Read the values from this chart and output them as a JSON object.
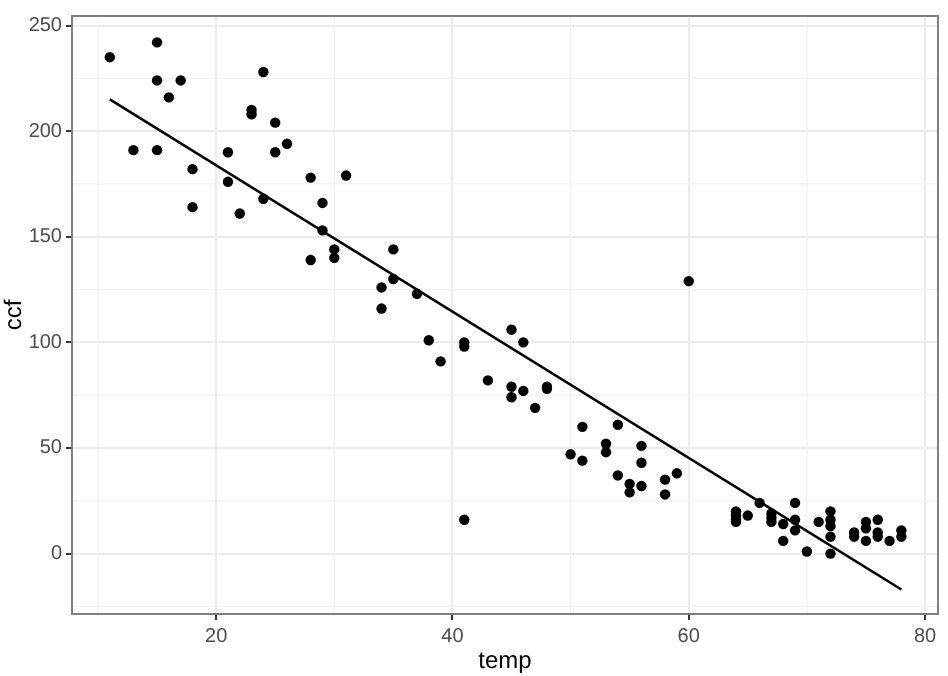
{
  "chart_data": {
    "type": "scatter",
    "xlabel": "temp",
    "ylabel": "ccf",
    "xlim": [
      7.8,
      81.1
    ],
    "ylim": [
      -28.6,
      254.5
    ],
    "xticks": [
      20,
      40,
      60,
      80
    ],
    "yticks": [
      0,
      50,
      100,
      150,
      200,
      250
    ],
    "grid": true,
    "legend": false,
    "series": [
      {
        "color": "#000000",
        "marker": "circle",
        "x": [
          11,
          13,
          15,
          15,
          15,
          16,
          17,
          18,
          18,
          21,
          21,
          22,
          23,
          23,
          24,
          24,
          25,
          25,
          26,
          28,
          28,
          29,
          29,
          30,
          30,
          31,
          34,
          34,
          35,
          35,
          37,
          38,
          39,
          41,
          41,
          41,
          45,
          46,
          43,
          45,
          45,
          46,
          47,
          48,
          48,
          50,
          51,
          51,
          53,
          53,
          54,
          54,
          55,
          55,
          56,
          56,
          56,
          58,
          58,
          59,
          60,
          64,
          64,
          64,
          64,
          65,
          66,
          67,
          67,
          67,
          68,
          68,
          69,
          69,
          69,
          70,
          71,
          72,
          72,
          72,
          72,
          72,
          74,
          74,
          75,
          75,
          75,
          76,
          76,
          76,
          77,
          78,
          78
        ],
        "values": [
          235,
          191,
          242,
          224,
          191,
          216,
          224,
          182,
          164,
          190,
          176,
          161,
          210,
          208,
          228,
          168,
          204,
          190,
          194,
          178,
          139,
          166,
          153,
          144,
          140,
          179,
          126,
          116,
          144,
          130,
          123,
          101,
          91,
          100,
          98,
          16,
          106,
          100,
          82,
          79,
          74,
          77,
          69,
          79,
          78,
          47,
          60,
          44,
          52,
          48,
          61,
          37,
          33,
          29,
          51,
          43,
          32,
          35,
          28,
          38,
          129,
          20,
          18,
          16,
          15,
          18,
          24,
          19,
          17,
          15,
          14,
          6,
          24,
          16,
          11,
          1,
          15,
          20,
          16,
          13,
          8,
          0,
          10,
          8,
          15,
          12,
          6,
          16,
          10,
          8,
          6,
          11,
          8
        ]
      },
      {
        "type": "line",
        "marker": "none",
        "color": "#000000",
        "x": [
          11,
          78
        ],
        "values": [
          215,
          -17
        ]
      }
    ]
  }
}
